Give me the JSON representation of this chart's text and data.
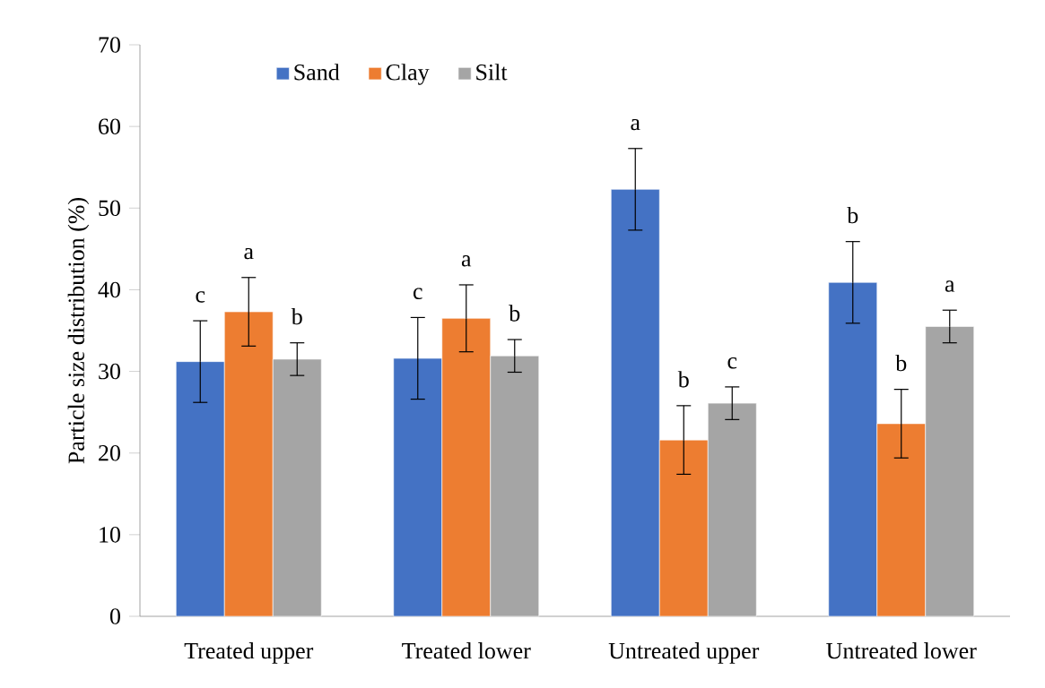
{
  "chart_data": {
    "type": "bar",
    "ylabel": "Particle size distribution (%)",
    "categories": [
      "Treated upper",
      "Treated lower",
      "Untreated upper",
      "Untreated lower"
    ],
    "series": [
      {
        "name": "Sand",
        "color": "#4472c4",
        "values": [
          31.2,
          31.6,
          52.3,
          40.9
        ],
        "errors": [
          5,
          5,
          5,
          5
        ],
        "value_labels": [
          "c",
          "c",
          "a",
          "b"
        ]
      },
      {
        "name": "Clay",
        "color": "#ed7d31",
        "values": [
          37.3,
          36.5,
          21.6,
          23.6
        ],
        "errors": [
          4.2,
          4.1,
          4.2,
          4.2
        ],
        "value_labels": [
          "a",
          "a",
          "b",
          "b"
        ]
      },
      {
        "name": "Silt",
        "color": "#a5a5a5",
        "values": [
          31.5,
          31.9,
          26.1,
          35.5
        ],
        "errors": [
          2,
          2,
          2,
          2
        ],
        "value_labels": [
          "b",
          "b",
          "c",
          "a"
        ]
      }
    ],
    "ylim": [
      0,
      70
    ],
    "yticks": [
      0,
      10,
      20,
      30,
      40,
      50,
      60,
      70
    ],
    "grid": false,
    "legend": "top left"
  }
}
